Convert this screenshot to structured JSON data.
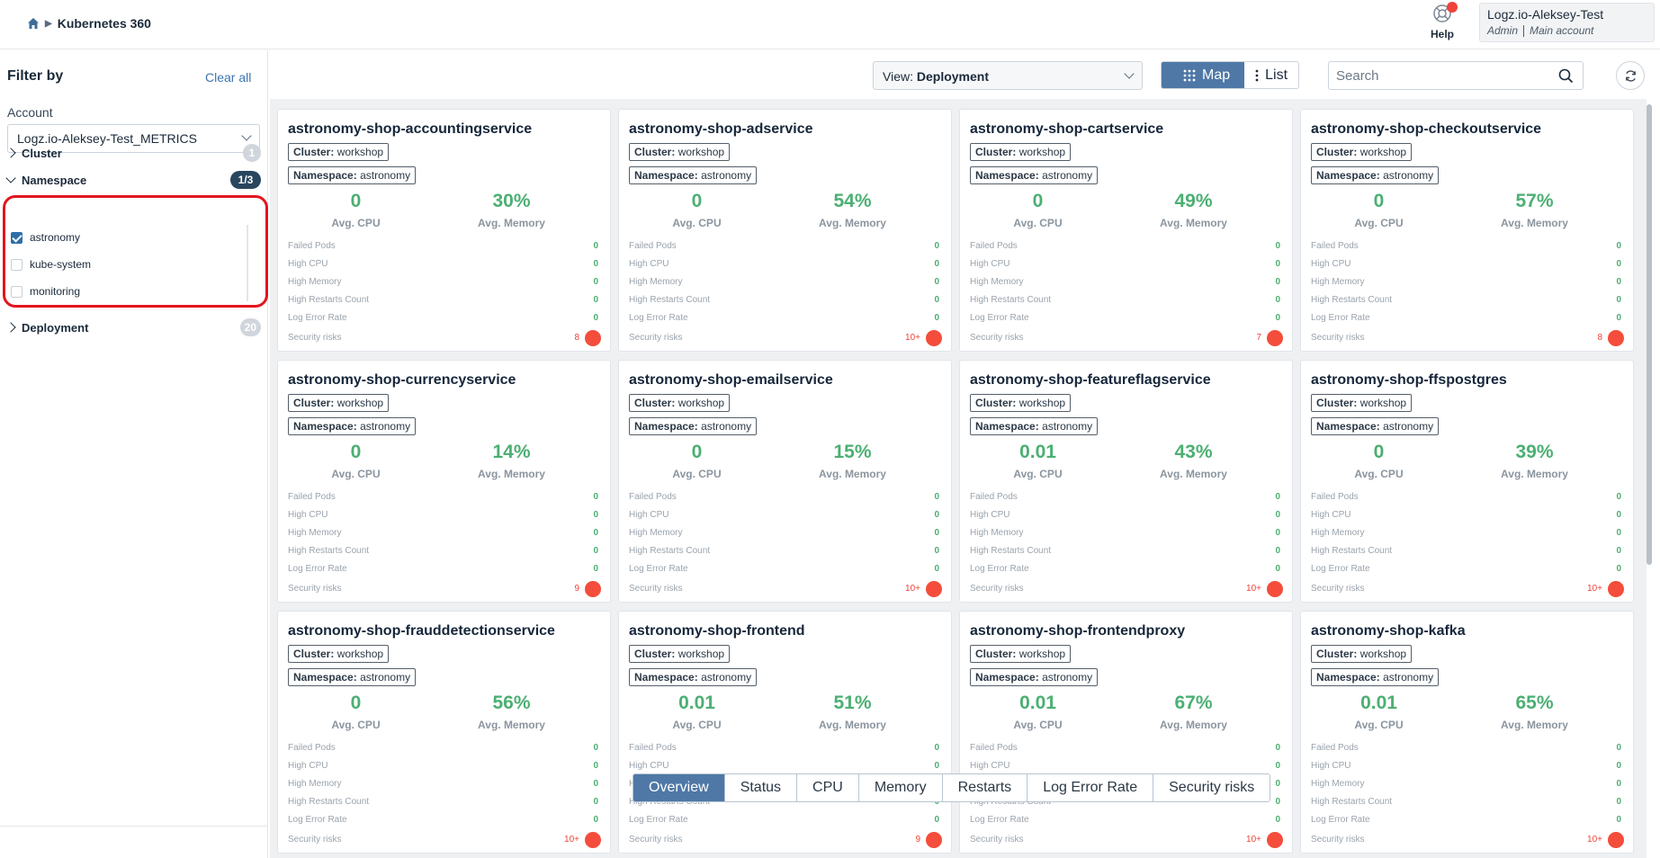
{
  "header": {
    "breadcrumb_title": "Kubernetes 360",
    "help_label": "Help",
    "account_name": "Logz.io-Aleksey-Test",
    "account_role": "Admin",
    "account_type": "Main account"
  },
  "sidebar": {
    "title": "Filter by",
    "clear_all": "Clear all",
    "account_label": "Account",
    "account_value": "Logz.io-Aleksey-Test_METRICS",
    "facets": {
      "cluster": {
        "label": "Cluster",
        "count": "1"
      },
      "namespace": {
        "label": "Namespace",
        "count": "1/3"
      },
      "deployment": {
        "label": "Deployment",
        "count": "20"
      }
    },
    "namespaces": [
      {
        "label": "astronomy",
        "checked": true
      },
      {
        "label": "kube-system",
        "checked": false
      },
      {
        "label": "monitoring",
        "checked": false
      }
    ]
  },
  "toolbar": {
    "view_prefix": "View: ",
    "view_value": "Deployment",
    "map_label": "Map",
    "list_label": "List",
    "search_placeholder": "Search"
  },
  "labels": {
    "cluster_key": "Cluster:",
    "namespace_key": "Namespace:",
    "avg_cpu": "Avg. CPU",
    "avg_memory": "Avg. Memory",
    "failed_pods": "Failed Pods",
    "high_cpu": "High CPU",
    "high_memory": "High Memory",
    "high_restarts": "High Restarts Count",
    "log_error_rate": "Log Error Rate",
    "security_risks": "Security risks"
  },
  "cards": [
    {
      "name": "astronomy-shop-accountingservice",
      "cluster": "workshop",
      "namespace": "astronomy",
      "cpu": "0",
      "memory": "30%",
      "failed_pods": "0",
      "high_cpu": "0",
      "high_memory": "0",
      "high_restarts": "0",
      "log_error_rate": "0",
      "security": "8"
    },
    {
      "name": "astronomy-shop-adservice",
      "cluster": "workshop",
      "namespace": "astronomy",
      "cpu": "0",
      "memory": "54%",
      "failed_pods": "0",
      "high_cpu": "0",
      "high_memory": "0",
      "high_restarts": "0",
      "log_error_rate": "0",
      "security": "10+"
    },
    {
      "name": "astronomy-shop-cartservice",
      "cluster": "workshop",
      "namespace": "astronomy",
      "cpu": "0",
      "memory": "49%",
      "failed_pods": "0",
      "high_cpu": "0",
      "high_memory": "0",
      "high_restarts": "0",
      "log_error_rate": "0",
      "security": "7"
    },
    {
      "name": "astronomy-shop-checkoutservice",
      "cluster": "workshop",
      "namespace": "astronomy",
      "cpu": "0",
      "memory": "57%",
      "failed_pods": "0",
      "high_cpu": "0",
      "high_memory": "0",
      "high_restarts": "0",
      "log_error_rate": "0",
      "security": "8"
    },
    {
      "name": "astronomy-shop-currencyservice",
      "cluster": "workshop",
      "namespace": "astronomy",
      "cpu": "0",
      "memory": "14%",
      "failed_pods": "0",
      "high_cpu": "0",
      "high_memory": "0",
      "high_restarts": "0",
      "log_error_rate": "0",
      "security": "9"
    },
    {
      "name": "astronomy-shop-emailservice",
      "cluster": "workshop",
      "namespace": "astronomy",
      "cpu": "0",
      "memory": "15%",
      "failed_pods": "0",
      "high_cpu": "0",
      "high_memory": "0",
      "high_restarts": "0",
      "log_error_rate": "0",
      "security": "10+"
    },
    {
      "name": "astronomy-shop-featureflagservice",
      "cluster": "workshop",
      "namespace": "astronomy",
      "cpu": "0.01",
      "memory": "43%",
      "failed_pods": "0",
      "high_cpu": "0",
      "high_memory": "0",
      "high_restarts": "0",
      "log_error_rate": "0",
      "security": "10+"
    },
    {
      "name": "astronomy-shop-ffspostgres",
      "cluster": "workshop",
      "namespace": "astronomy",
      "cpu": "0",
      "memory": "39%",
      "failed_pods": "0",
      "high_cpu": "0",
      "high_memory": "0",
      "high_restarts": "0",
      "log_error_rate": "0",
      "security": "10+"
    },
    {
      "name": "astronomy-shop-frauddetectionservice",
      "cluster": "workshop",
      "namespace": "astronomy",
      "cpu": "0",
      "memory": "56%",
      "failed_pods": "0",
      "high_cpu": "0",
      "high_memory": "0",
      "high_restarts": "0",
      "log_error_rate": "0",
      "security": "10+"
    },
    {
      "name": "astronomy-shop-frontend",
      "cluster": "workshop",
      "namespace": "astronomy",
      "cpu": "0.01",
      "memory": "51%",
      "failed_pods": "0",
      "high_cpu": "0",
      "high_memory": "0",
      "high_restarts": "0",
      "log_error_rate": "0",
      "security": "9"
    },
    {
      "name": "astronomy-shop-frontendproxy",
      "cluster": "workshop",
      "namespace": "astronomy",
      "cpu": "0.01",
      "memory": "67%",
      "failed_pods": "0",
      "high_cpu": "0",
      "high_memory": "0",
      "high_restarts": "0",
      "log_error_rate": "0",
      "security": "10+"
    },
    {
      "name": "astronomy-shop-kafka",
      "cluster": "workshop",
      "namespace": "astronomy",
      "cpu": "0.01",
      "memory": "65%",
      "failed_pods": "0",
      "high_cpu": "0",
      "high_memory": "0",
      "high_restarts": "0",
      "log_error_rate": "0",
      "security": "10+"
    }
  ],
  "bottom_tabs": [
    {
      "label": "Overview",
      "active": true
    },
    {
      "label": "Status",
      "active": false
    },
    {
      "label": "CPU",
      "active": false
    },
    {
      "label": "Memory",
      "active": false
    },
    {
      "label": "Restarts",
      "active": false
    },
    {
      "label": "Log Error Rate",
      "active": false
    },
    {
      "label": "Security risks",
      "active": false
    }
  ],
  "colors": {
    "accent": "#4f78a7",
    "metric_green": "#4caf73",
    "risk_red": "#f44d3b",
    "highlight_ring": "#e3151e"
  }
}
